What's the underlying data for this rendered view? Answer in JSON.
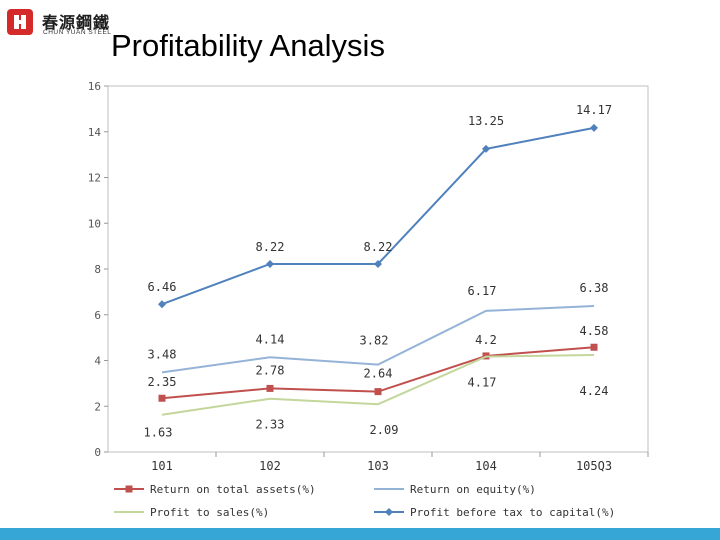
{
  "header": {
    "logo_cn": "春源鋼鐵",
    "logo_en": "CHUN YUAN STEEL",
    "title": "Profitability Analysis"
  },
  "colors": {
    "accent_bar": "#35a6d6",
    "logo_red": "#d42a2a"
  },
  "chart_data": {
    "type": "line",
    "title": "Profitability Analysis",
    "xlabel": "",
    "ylabel": "",
    "ylim": [
      0,
      16
    ],
    "yticks": [
      "0",
      "2",
      "4",
      "6",
      "8",
      "10",
      "12",
      "14",
      "16"
    ],
    "categories": [
      "101",
      "102",
      "103",
      "104",
      "105Q3"
    ],
    "series": [
      {
        "name": "Return on total assets(%)",
        "color": "#c0504d",
        "marker": "square",
        "values": [
          2.35,
          2.78,
          2.64,
          4.2,
          4.58
        ],
        "labels": [
          "2.35",
          "2.78",
          "2.64",
          "4.2",
          "4.58"
        ]
      },
      {
        "name": "Return on equity(%)",
        "color": "#95b3d7",
        "marker": "none",
        "values": [
          3.48,
          4.14,
          3.82,
          6.17,
          6.38
        ],
        "labels": [
          "3.48",
          "4.14",
          "3.82",
          "6.17",
          "6.38"
        ]
      },
      {
        "name": "Profit to sales(%)",
        "color": "#c3d69b",
        "marker": "none",
        "values": [
          1.63,
          2.33,
          2.09,
          4.17,
          4.24
        ],
        "labels": [
          "1.63",
          "2.33",
          "2.09",
          "4.17",
          "4.24"
        ]
      },
      {
        "name": "Profit before tax to capital(%)",
        "color": "#4f81bd",
        "marker": "diamond",
        "values": [
          6.46,
          8.22,
          8.22,
          13.25,
          14.17
        ],
        "labels": [
          "6.46",
          "8.22",
          "8.22",
          "13.25",
          "14.17"
        ]
      }
    ],
    "legend_position": "bottom"
  }
}
